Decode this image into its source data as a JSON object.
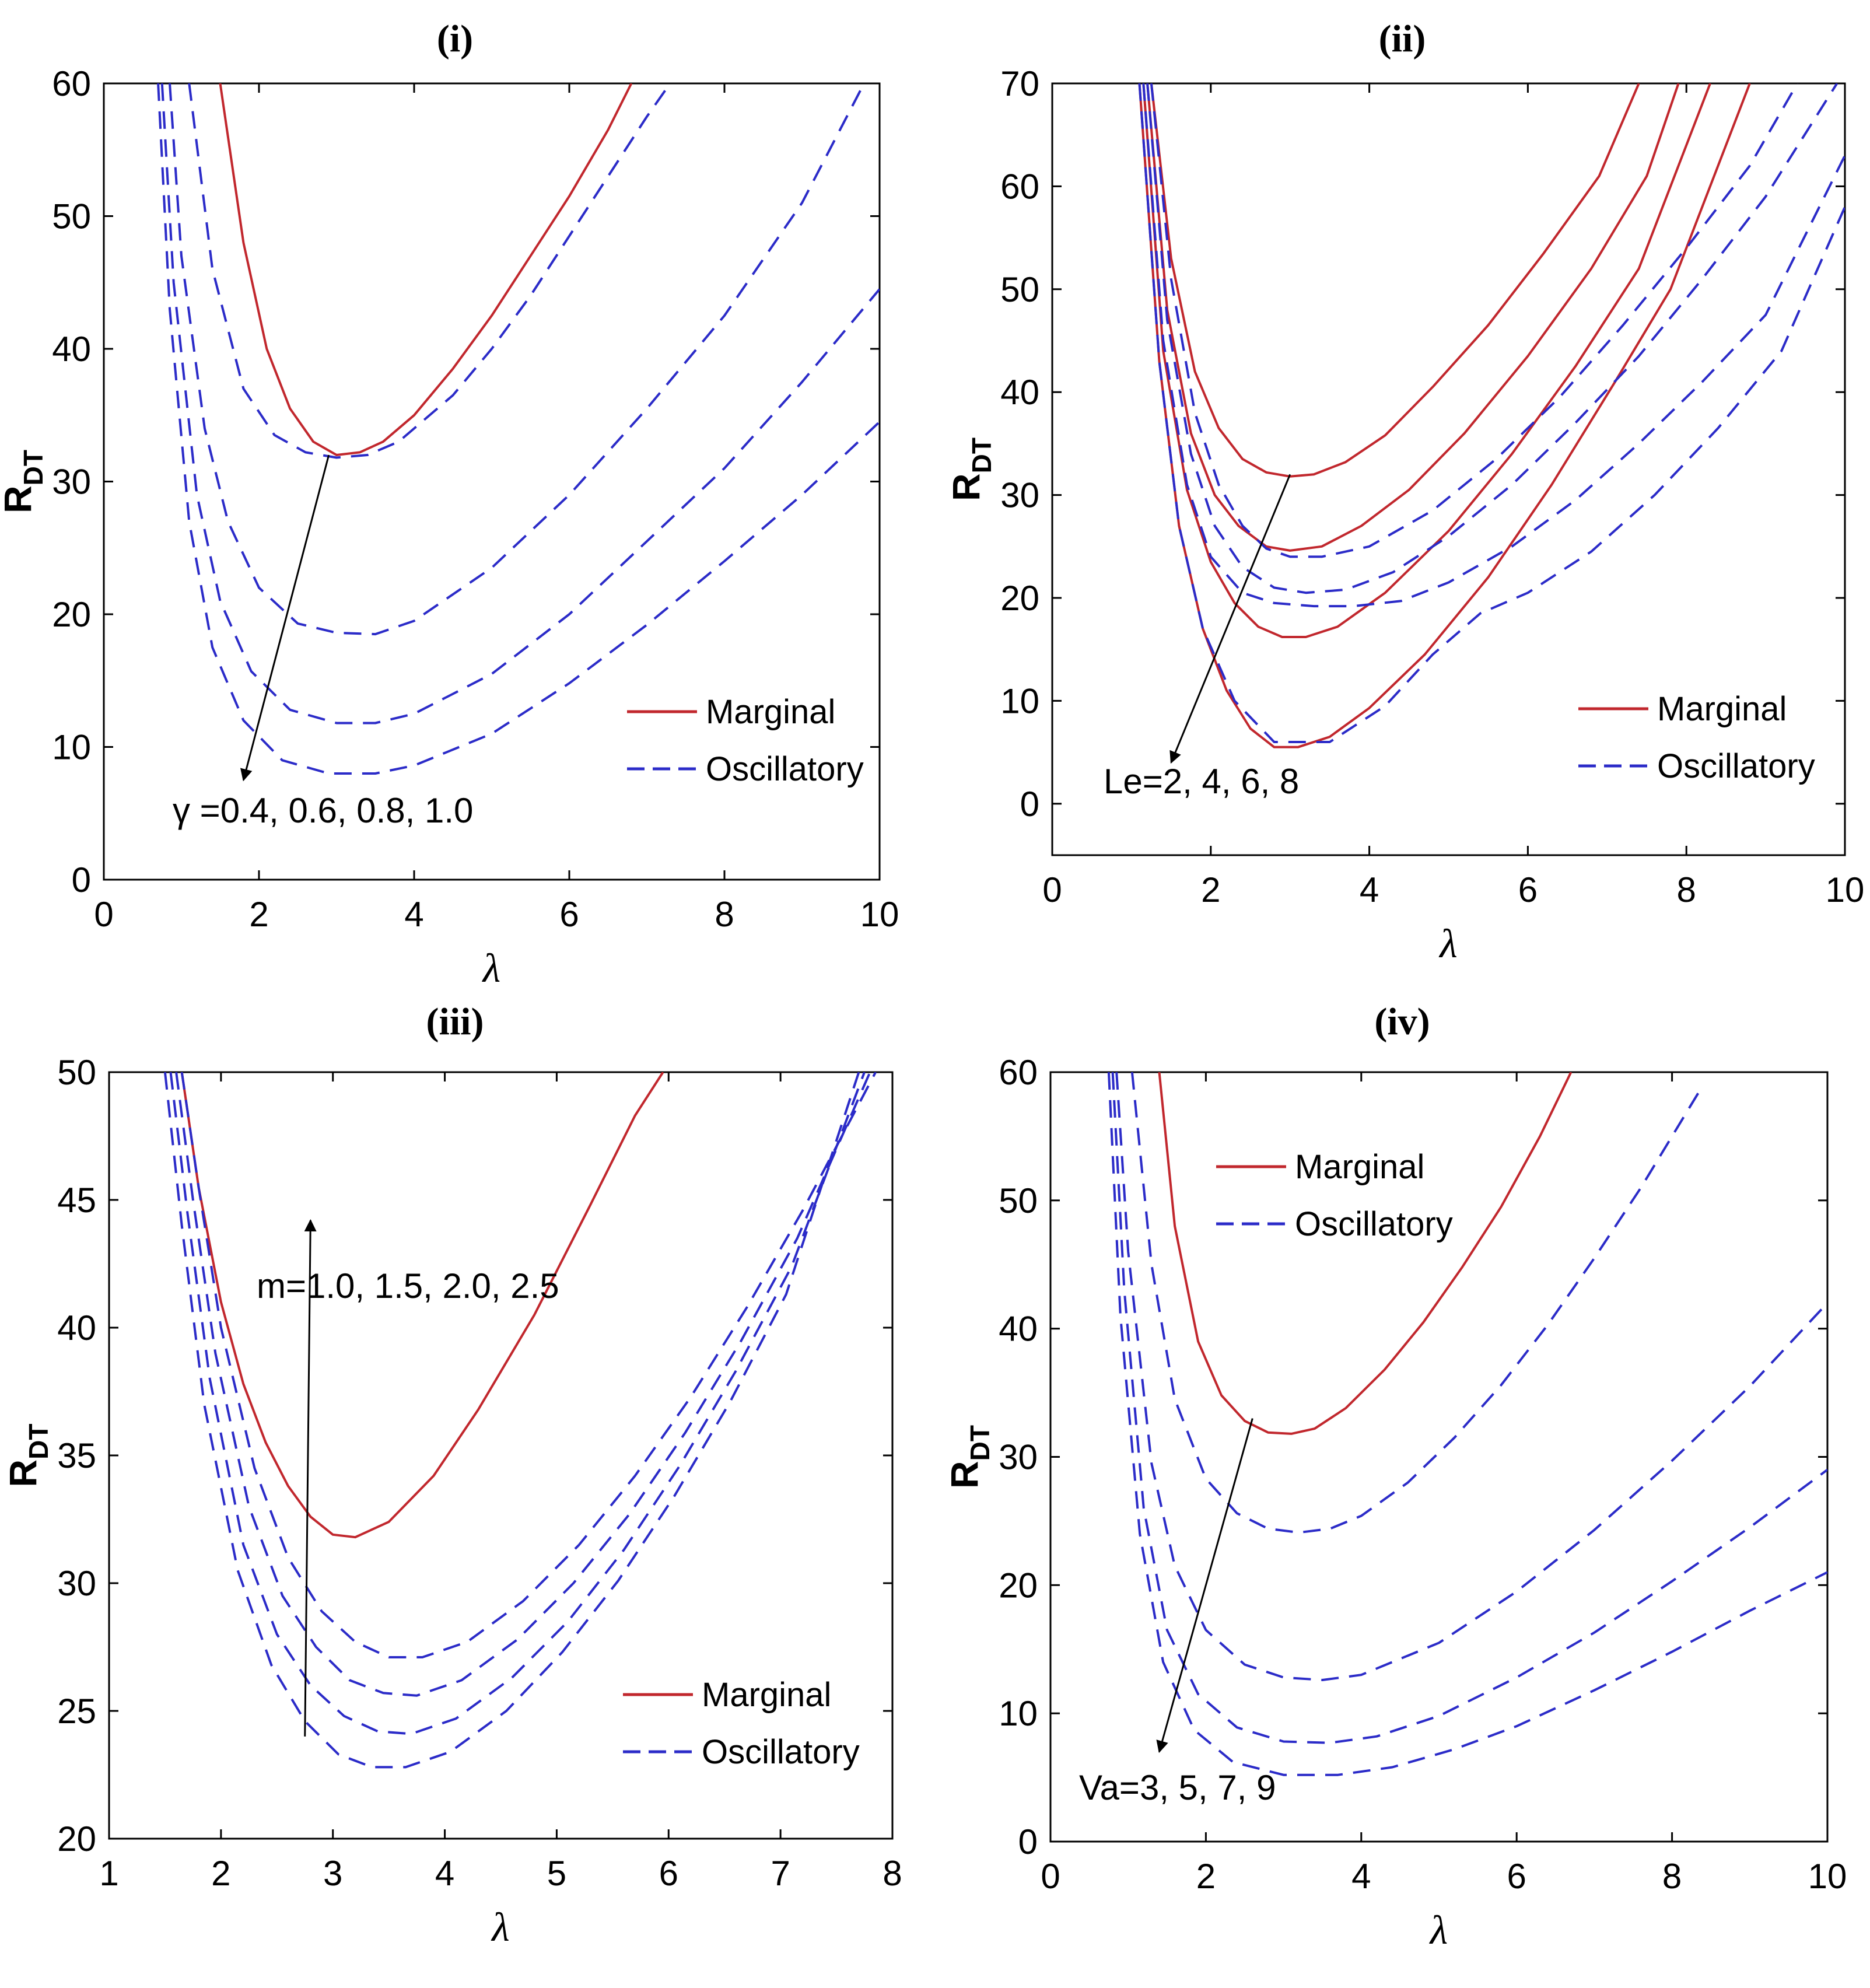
{
  "chart_data": [
    {
      "type": "line",
      "panel": "(i)",
      "title": "(i)",
      "xlabel": "λ",
      "ylabel": "R",
      "ylabel_sub": "DT",
      "xlim": [
        0,
        10
      ],
      "ylim": [
        0,
        60
      ],
      "xticks": [
        0,
        2,
        4,
        6,
        8,
        10
      ],
      "yticks": [
        0,
        10,
        20,
        30,
        40,
        50,
        60
      ],
      "legend": [
        "Marginal",
        "Oscillatory"
      ],
      "legend_position": "bottom-right",
      "annotation": {
        "text": "γ =0.4, 0.6, 0.8, 1.0",
        "arrow_from": [
          2.9,
          32
        ],
        "arrow_to": [
          1.8,
          7.5
        ]
      },
      "series": [
        {
          "name": "Marginal",
          "style": "solid",
          "color": "#c1272d",
          "x": [
            1.5,
            1.8,
            2.1,
            2.4,
            2.7,
            3.0,
            3.3,
            3.6,
            4.0,
            4.5,
            5.0,
            5.5,
            6.0,
            6.5,
            6.8
          ],
          "y": [
            60,
            48,
            40,
            35.5,
            33,
            32,
            32.2,
            33,
            35,
            38.5,
            42.5,
            47,
            51.5,
            56.5,
            60
          ]
        },
        {
          "name": "Oscillatory",
          "style": "dashed",
          "color": "#2b2bc8",
          "x": [
            1.1,
            1.4,
            1.8,
            2.2,
            2.6,
            3.0,
            3.4,
            3.8,
            4.0,
            4.5,
            5.0,
            5.5,
            6.0,
            6.5,
            7.0,
            7.3
          ],
          "y": [
            60,
            46,
            37,
            33.5,
            32.2,
            31.8,
            32,
            33,
            34,
            36.5,
            40,
            44,
            48.5,
            53,
            57.5,
            60
          ]
        },
        {
          "name": "Oscillatory",
          "style": "dashed",
          "color": "#2b2bc8",
          "x": [
            0.85,
            1.0,
            1.3,
            1.6,
            2.0,
            2.5,
            3.0,
            3.5,
            4.0,
            5.0,
            6.0,
            7.0,
            8.0,
            9.0,
            9.8
          ],
          "y": [
            60,
            47,
            34,
            27,
            22,
            19.3,
            18.6,
            18.5,
            19.5,
            23.5,
            29,
            35.5,
            42.5,
            51,
            60
          ]
        },
        {
          "name": "Oscillatory",
          "style": "dashed",
          "color": "#2b2bc8",
          "x": [
            0.75,
            0.9,
            1.2,
            1.5,
            1.9,
            2.4,
            3.0,
            3.5,
            4.0,
            5.0,
            6.0,
            7.0,
            8.0,
            9.0,
            10.0
          ],
          "y": [
            60,
            45,
            29,
            21,
            15.7,
            12.8,
            11.8,
            11.8,
            12.5,
            15.5,
            20,
            25.5,
            31,
            37.5,
            44.5
          ]
        },
        {
          "name": "Oscillatory",
          "style": "dashed",
          "color": "#2b2bc8",
          "x": [
            0.7,
            0.85,
            1.1,
            1.4,
            1.8,
            2.3,
            2.9,
            3.5,
            4.0,
            5.0,
            6.0,
            7.0,
            8.0,
            9.0,
            10.0
          ],
          "y": [
            60,
            43,
            27,
            17.5,
            12,
            9,
            8,
            8,
            8.6,
            11,
            14.8,
            19.2,
            24,
            29,
            34.5
          ]
        }
      ]
    },
    {
      "type": "line",
      "panel": "(ii)",
      "title": "(ii)",
      "xlabel": "λ",
      "ylabel": "R",
      "ylabel_sub": "DT",
      "xlim": [
        0,
        10
      ],
      "ylim": [
        -5,
        70
      ],
      "xticks": [
        0,
        2,
        4,
        6,
        8,
        10
      ],
      "yticks": [
        0,
        10,
        20,
        30,
        40,
        50,
        60,
        70
      ],
      "legend": [
        "Marginal",
        "Oscillatory"
      ],
      "legend_position": "bottom-right",
      "annotation": {
        "text": "Le=2, 4, 6, 8",
        "arrow_from": [
          3.0,
          32
        ],
        "arrow_to": [
          1.5,
          4
        ]
      },
      "series": [
        {
          "name": "Marginal",
          "style": "solid",
          "color": "#c1272d",
          "x": [
            1.25,
            1.5,
            1.8,
            2.1,
            2.4,
            2.7,
            3.0,
            3.3,
            3.7,
            4.2,
            4.8,
            5.5,
            6.2,
            6.9,
            7.4
          ],
          "y": [
            70,
            53,
            42,
            36.5,
            33.5,
            32.2,
            31.8,
            32,
            33.2,
            35.8,
            40.5,
            46.5,
            53.5,
            61,
            70
          ]
        },
        {
          "name": "Marginal",
          "style": "solid",
          "color": "#c1272d",
          "x": [
            1.2,
            1.45,
            1.75,
            2.05,
            2.35,
            2.7,
            3.0,
            3.4,
            3.9,
            4.5,
            5.2,
            6.0,
            6.8,
            7.5,
            7.9
          ],
          "y": [
            70,
            48,
            36,
            30,
            27,
            25,
            24.6,
            25,
            27,
            30.5,
            36,
            43.5,
            52,
            61,
            70
          ]
        },
        {
          "name": "Marginal",
          "style": "solid",
          "color": "#c1272d",
          "x": [
            1.15,
            1.4,
            1.7,
            2.0,
            2.3,
            2.6,
            2.9,
            3.2,
            3.6,
            4.2,
            5.0,
            5.8,
            6.6,
            7.4,
            8.3
          ],
          "y": [
            70,
            44,
            30.5,
            23.5,
            19.5,
            17.2,
            16.2,
            16.2,
            17.2,
            20.5,
            26.5,
            34,
            42.5,
            52,
            70
          ]
        },
        {
          "name": "Marginal",
          "style": "solid",
          "color": "#c1272d",
          "x": [
            1.1,
            1.35,
            1.6,
            1.9,
            2.2,
            2.5,
            2.8,
            3.1,
            3.5,
            4.0,
            4.7,
            5.5,
            6.3,
            7.1,
            7.8,
            8.8
          ],
          "y": [
            70,
            43,
            27,
            17,
            11,
            7.3,
            5.5,
            5.5,
            6.5,
            9.3,
            14.5,
            22,
            31,
            41,
            50,
            70
          ]
        },
        {
          "name": "Oscillatory",
          "style": "dashed",
          "color": "#2b2bc8",
          "x": [
            1.25,
            1.5,
            1.8,
            2.1,
            2.4,
            2.7,
            3.0,
            3.4,
            4.0,
            4.8,
            5.6,
            6.4,
            7.2,
            8.0,
            8.8,
            9.4
          ],
          "y": [
            70,
            51,
            38,
            31,
            27,
            24.8,
            24,
            24,
            25,
            28.5,
            33.5,
            39.5,
            46.5,
            54,
            62,
            70
          ]
        },
        {
          "name": "Oscillatory",
          "style": "dashed",
          "color": "#2b2bc8",
          "x": [
            1.2,
            1.45,
            1.75,
            2.05,
            2.4,
            2.8,
            3.2,
            3.7,
            4.3,
            5.0,
            5.8,
            6.6,
            7.4,
            8.2,
            9.0,
            9.9
          ],
          "y": [
            70,
            47,
            34,
            27,
            23,
            21,
            20.5,
            20.8,
            22.5,
            26,
            31,
            37,
            43.5,
            51,
            59,
            70
          ]
        },
        {
          "name": "Oscillatory",
          "style": "dashed",
          "color": "#2b2bc8",
          "x": [
            1.15,
            1.4,
            1.7,
            2.0,
            2.4,
            2.8,
            3.3,
            3.8,
            4.4,
            5.0,
            5.8,
            6.6,
            7.4,
            8.2,
            9.0,
            10.0
          ],
          "y": [
            70,
            45,
            31,
            24,
            20.5,
            19.5,
            19.2,
            19.2,
            19.7,
            21.5,
            25,
            29.5,
            35,
            41,
            47.5,
            63
          ]
        },
        {
          "name": "Oscillatory",
          "style": "dashed",
          "color": "#2b2bc8",
          "x": [
            1.1,
            1.35,
            1.6,
            1.9,
            2.3,
            2.8,
            3.5,
            4.2,
            4.8,
            5.4,
            6.0,
            6.8,
            7.6,
            8.4,
            9.2,
            10.0
          ],
          "y": [
            70,
            43,
            27,
            17,
            10,
            6,
            6,
            9.5,
            14.5,
            18.5,
            20.5,
            24.5,
            30,
            36.5,
            44,
            58
          ]
        }
      ]
    },
    {
      "type": "line",
      "panel": "(iii)",
      "title": "(iii)",
      "xlabel": "λ",
      "ylabel": "R",
      "ylabel_sub": "DT",
      "xlim": [
        1,
        8
      ],
      "ylim": [
        20,
        50
      ],
      "xticks": [
        1,
        2,
        3,
        4,
        5,
        6,
        7,
        8
      ],
      "yticks": [
        20,
        25,
        30,
        35,
        40,
        45,
        50
      ],
      "legend": [
        "Marginal",
        "Oscillatory"
      ],
      "legend_position": "bottom-right",
      "annotation": {
        "text": "m=1.0, 1.5, 2.0, 2.5",
        "arrow_from": [
          2.75,
          24
        ],
        "arrow_to": [
          2.8,
          44.2
        ]
      },
      "series": [
        {
          "name": "Marginal",
          "style": "solid",
          "color": "#c1272d",
          "x": [
            1.65,
            1.8,
            2.0,
            2.2,
            2.4,
            2.6,
            2.8,
            3.0,
            3.2,
            3.5,
            3.9,
            4.3,
            4.8,
            5.3,
            5.7,
            5.95
          ],
          "y": [
            50,
            45.5,
            41,
            37.8,
            35.5,
            33.8,
            32.6,
            31.9,
            31.8,
            32.4,
            34.2,
            36.8,
            40.5,
            44.8,
            48.3,
            50
          ]
        },
        {
          "name": "Oscillatory",
          "style": "dashed",
          "color": "#2b2bc8",
          "x": [
            1.65,
            1.8,
            2.0,
            2.3,
            2.6,
            2.9,
            3.2,
            3.5,
            3.8,
            4.2,
            4.7,
            5.2,
            5.7,
            6.2,
            6.7,
            7.2,
            7.85
          ],
          "y": [
            50,
            45.5,
            40,
            34.5,
            31,
            28.9,
            27.7,
            27.1,
            27.1,
            27.7,
            29.3,
            31.5,
            34.2,
            37.3,
            40.8,
            44.6,
            50
          ]
        },
        {
          "name": "Oscillatory",
          "style": "dashed",
          "color": "#2b2bc8",
          "x": [
            1.6,
            1.75,
            1.95,
            2.25,
            2.55,
            2.85,
            3.15,
            3.45,
            3.75,
            4.15,
            4.65,
            5.15,
            5.65,
            6.15,
            6.65,
            7.15,
            7.8
          ],
          "y": [
            50,
            45,
            39,
            33,
            29.5,
            27.5,
            26.2,
            25.7,
            25.6,
            26.2,
            27.8,
            30,
            32.7,
            35.9,
            39.5,
            43.5,
            50
          ]
        },
        {
          "name": "Oscillatory",
          "style": "dashed",
          "color": "#2b2bc8",
          "x": [
            1.55,
            1.7,
            1.9,
            2.2,
            2.5,
            2.8,
            3.1,
            3.4,
            3.7,
            4.1,
            4.6,
            5.1,
            5.6,
            6.1,
            6.6,
            7.1,
            7.75
          ],
          "y": [
            50,
            44.5,
            38,
            31.5,
            28,
            26,
            24.8,
            24.2,
            24.1,
            24.7,
            26.3,
            28.5,
            31.3,
            34.6,
            38.3,
            42.4,
            50
          ]
        },
        {
          "name": "Oscillatory",
          "style": "dashed",
          "color": "#2b2bc8",
          "x": [
            1.5,
            1.65,
            1.85,
            2.15,
            2.45,
            2.75,
            3.05,
            3.35,
            3.65,
            4.05,
            4.55,
            5.05,
            5.55,
            6.05,
            6.55,
            7.05,
            7.7
          ],
          "y": [
            50,
            44,
            37,
            30.5,
            26.8,
            24.6,
            23.3,
            22.8,
            22.8,
            23.4,
            25,
            27.3,
            30.1,
            33.4,
            37.1,
            41.3,
            50
          ]
        }
      ]
    },
    {
      "type": "line",
      "panel": "(iv)",
      "title": "(iv)",
      "xlabel": "λ",
      "ylabel": "R",
      "ylabel_sub": "DT",
      "xlim": [
        0,
        10
      ],
      "ylim": [
        0,
        60
      ],
      "xticks": [
        0,
        2,
        4,
        6,
        8,
        10
      ],
      "yticks": [
        0,
        10,
        20,
        30,
        40,
        50,
        60
      ],
      "legend": [
        "Marginal",
        "Oscillatory"
      ],
      "legend_position": "top-left",
      "annotation": {
        "text": "Va=3, 5, 7, 9",
        "arrow_from": [
          2.6,
          33
        ],
        "arrow_to": [
          1.4,
          7
        ]
      },
      "series": [
        {
          "name": "Marginal",
          "style": "solid",
          "color": "#c1272d",
          "x": [
            1.4,
            1.6,
            1.9,
            2.2,
            2.5,
            2.8,
            3.1,
            3.4,
            3.8,
            4.3,
            4.8,
            5.3,
            5.8,
            6.3,
            6.7
          ],
          "y": [
            60,
            48,
            39,
            34.8,
            32.8,
            31.9,
            31.8,
            32.2,
            33.8,
            36.8,
            40.5,
            44.8,
            49.5,
            55,
            60
          ]
        },
        {
          "name": "Oscillatory",
          "style": "dashed",
          "color": "#2b2bc8",
          "x": [
            1.05,
            1.3,
            1.6,
            2.0,
            2.4,
            2.8,
            3.2,
            3.6,
            4.0,
            4.6,
            5.2,
            5.8,
            6.4,
            7.0,
            7.6,
            8.4
          ],
          "y": [
            60,
            45,
            34.5,
            28.3,
            25.6,
            24.4,
            24.1,
            24.4,
            25.4,
            28,
            31.5,
            35.6,
            40.3,
            45.5,
            51,
            59
          ]
        },
        {
          "name": "Oscillatory",
          "style": "dashed",
          "color": "#2b2bc8",
          "x": [
            0.85,
            1.0,
            1.3,
            1.6,
            2.0,
            2.5,
            3.0,
            3.5,
            4.0,
            5.0,
            6.0,
            7.0,
            8.0,
            9.0,
            10.0
          ],
          "y": [
            60,
            46,
            29.5,
            21.5,
            16.5,
            13.8,
            12.8,
            12.6,
            13,
            15.5,
            19.5,
            24.3,
            29.7,
            35.5,
            42
          ]
        },
        {
          "name": "Oscillatory",
          "style": "dashed",
          "color": "#2b2bc8",
          "x": [
            0.8,
            0.95,
            1.2,
            1.5,
            1.9,
            2.4,
            3.0,
            3.6,
            4.2,
            5.0,
            6.0,
            7.0,
            8.0,
            9.0,
            10.0
          ],
          "y": [
            60,
            43,
            26,
            16.5,
            11.5,
            8.9,
            7.8,
            7.7,
            8.2,
            9.8,
            12.8,
            16.3,
            20.3,
            24.5,
            29
          ]
        },
        {
          "name": "Oscillatory",
          "style": "dashed",
          "color": "#2b2bc8",
          "x": [
            0.75,
            0.9,
            1.15,
            1.45,
            1.85,
            2.35,
            3.0,
            3.7,
            4.4,
            5.2,
            6.0,
            7.0,
            8.0,
            9.0,
            10.0
          ],
          "y": [
            60,
            41,
            24,
            14,
            8.7,
            6.2,
            5.2,
            5.2,
            5.8,
            7.2,
            9,
            11.8,
            14.8,
            18,
            21
          ]
        }
      ]
    }
  ]
}
